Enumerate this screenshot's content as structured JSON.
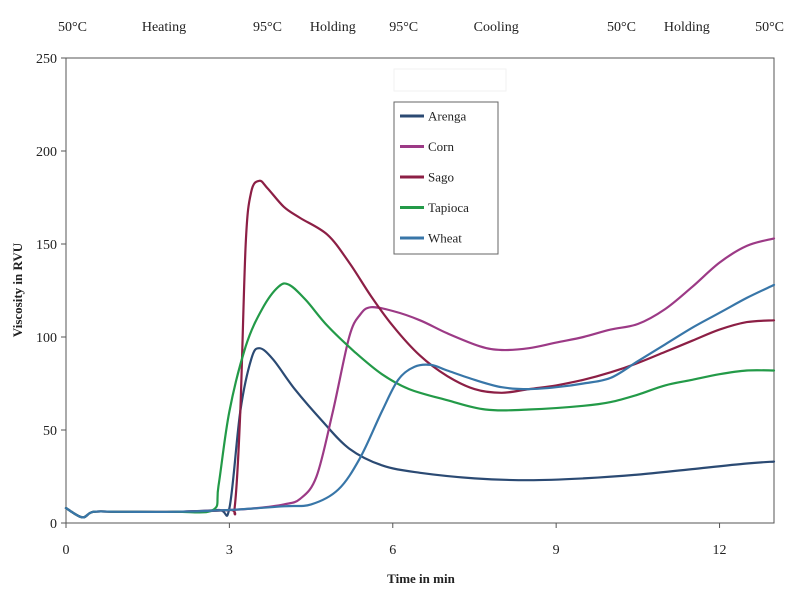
{
  "chart_data": {
    "type": "line",
    "title": "",
    "xlabel": "Time in min",
    "ylabel": "Viscosity in RVU",
    "xlim": [
      0,
      13
    ],
    "ylim": [
      0,
      250
    ],
    "x_ticks": [
      0,
      3,
      6,
      9,
      12
    ],
    "y_ticks": [
      0,
      50,
      100,
      150,
      200,
      250
    ],
    "grid": false,
    "legend_position": "upper-center",
    "phase_labels": [
      {
        "text": "50°C",
        "x": 0
      },
      {
        "text": "Heating",
        "x": 1.8
      },
      {
        "text": "95°C",
        "x": 3.7
      },
      {
        "text": "Holding",
        "x": 4.9
      },
      {
        "text": "95°C",
        "x": 6.2
      },
      {
        "text": "Cooling",
        "x": 7.9
      },
      {
        "text": "50°C",
        "x": 10.2
      },
      {
        "text": "Holding",
        "x": 11.4
      },
      {
        "text": "50°C",
        "x": 13
      }
    ],
    "series": [
      {
        "name": "Arenga",
        "color": "#2b4a73",
        "points": [
          [
            0,
            8
          ],
          [
            0.3,
            3
          ],
          [
            0.5,
            6
          ],
          [
            1,
            6
          ],
          [
            2,
            6
          ],
          [
            2.8,
            7
          ],
          [
            3.0,
            8
          ],
          [
            3.2,
            60
          ],
          [
            3.4,
            88
          ],
          [
            3.55,
            94
          ],
          [
            3.8,
            88
          ],
          [
            4.2,
            72
          ],
          [
            4.7,
            55
          ],
          [
            5.2,
            40
          ],
          [
            5.8,
            31
          ],
          [
            6.5,
            27
          ],
          [
            7.5,
            24
          ],
          [
            8.5,
            23
          ],
          [
            9.5,
            24
          ],
          [
            10.5,
            26
          ],
          [
            11.5,
            29
          ],
          [
            12.5,
            32
          ],
          [
            13,
            33
          ]
        ]
      },
      {
        "name": "Corn",
        "color": "#9c3a86",
        "points": [
          [
            0,
            8
          ],
          [
            0.3,
            3
          ],
          [
            0.5,
            6
          ],
          [
            1,
            6
          ],
          [
            2,
            6
          ],
          [
            3,
            7
          ],
          [
            3.5,
            8
          ],
          [
            4,
            10
          ],
          [
            4.3,
            13
          ],
          [
            4.6,
            25
          ],
          [
            4.9,
            60
          ],
          [
            5.2,
            100
          ],
          [
            5.4,
            112
          ],
          [
            5.6,
            116
          ],
          [
            6,
            114
          ],
          [
            6.5,
            109
          ],
          [
            7,
            102
          ],
          [
            7.6,
            95
          ],
          [
            8,
            93
          ],
          [
            8.5,
            94
          ],
          [
            9,
            97
          ],
          [
            9.5,
            100
          ],
          [
            10,
            104
          ],
          [
            10.5,
            107
          ],
          [
            11,
            115
          ],
          [
            11.5,
            127
          ],
          [
            12,
            140
          ],
          [
            12.5,
            149
          ],
          [
            13,
            153
          ]
        ]
      },
      {
        "name": "Sago",
        "color": "#8c1f45",
        "points": [
          [
            0,
            8
          ],
          [
            0.3,
            3
          ],
          [
            0.5,
            6
          ],
          [
            1,
            6
          ],
          [
            2,
            6
          ],
          [
            3,
            7
          ],
          [
            3.1,
            9
          ],
          [
            3.2,
            60
          ],
          [
            3.3,
            150
          ],
          [
            3.4,
            178
          ],
          [
            3.55,
            184
          ],
          [
            3.7,
            180
          ],
          [
            4.0,
            170
          ],
          [
            4.3,
            164
          ],
          [
            4.8,
            155
          ],
          [
            5.2,
            140
          ],
          [
            5.6,
            122
          ],
          [
            6,
            106
          ],
          [
            6.5,
            90
          ],
          [
            7,
            79
          ],
          [
            7.5,
            72
          ],
          [
            8,
            70
          ],
          [
            8.5,
            72
          ],
          [
            9,
            74
          ],
          [
            9.5,
            77
          ],
          [
            10,
            81
          ],
          [
            10.5,
            86
          ],
          [
            11,
            92
          ],
          [
            11.5,
            98
          ],
          [
            12,
            104
          ],
          [
            12.5,
            108
          ],
          [
            13,
            109
          ]
        ]
      },
      {
        "name": "Tapioca",
        "color": "#239a48",
        "points": [
          [
            0,
            8
          ],
          [
            0.3,
            3
          ],
          [
            0.5,
            6
          ],
          [
            1,
            6
          ],
          [
            2,
            6
          ],
          [
            2.7,
            7
          ],
          [
            2.8,
            20
          ],
          [
            3.0,
            60
          ],
          [
            3.3,
            95
          ],
          [
            3.6,
            115
          ],
          [
            3.9,
            127
          ],
          [
            4.1,
            128
          ],
          [
            4.4,
            120
          ],
          [
            4.8,
            106
          ],
          [
            5.3,
            92
          ],
          [
            5.8,
            80
          ],
          [
            6.3,
            72
          ],
          [
            7,
            66
          ],
          [
            7.7,
            61
          ],
          [
            8.5,
            61
          ],
          [
            9.5,
            63
          ],
          [
            10,
            65
          ],
          [
            10.5,
            69
          ],
          [
            11,
            74
          ],
          [
            11.5,
            77
          ],
          [
            12,
            80
          ],
          [
            12.5,
            82
          ],
          [
            13,
            82
          ]
        ]
      },
      {
        "name": "Wheat",
        "color": "#3876a8",
        "points": [
          [
            0,
            8
          ],
          [
            0.3,
            3
          ],
          [
            0.5,
            6
          ],
          [
            1,
            6
          ],
          [
            2,
            6
          ],
          [
            3,
            7
          ],
          [
            4,
            9
          ],
          [
            4.5,
            10
          ],
          [
            5,
            18
          ],
          [
            5.4,
            35
          ],
          [
            5.8,
            60
          ],
          [
            6.1,
            77
          ],
          [
            6.4,
            84
          ],
          [
            6.7,
            85
          ],
          [
            7,
            82
          ],
          [
            7.5,
            77
          ],
          [
            8,
            73
          ],
          [
            8.5,
            72
          ],
          [
            9,
            73
          ],
          [
            9.5,
            75
          ],
          [
            10,
            78
          ],
          [
            10.5,
            87
          ],
          [
            11,
            96
          ],
          [
            11.5,
            105
          ],
          [
            12,
            113
          ],
          [
            12.5,
            121
          ],
          [
            13,
            128
          ]
        ]
      }
    ]
  }
}
